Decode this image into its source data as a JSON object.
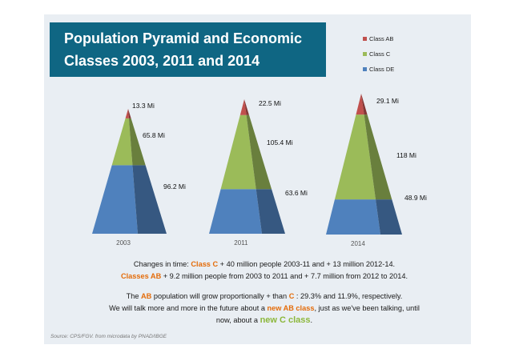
{
  "title": {
    "line1": "Population Pyramid and Economic",
    "line2": "Classes 2003, 2011 and 2014"
  },
  "legend": [
    {
      "name": "Class AB",
      "color": "#c0504d"
    },
    {
      "name": "Class C",
      "color": "#9bbb59"
    },
    {
      "name": "Class DE",
      "color": "#4f81bd"
    }
  ],
  "chart_data": {
    "type": "bar",
    "style": "stacked 3D pyramids",
    "categories": [
      "2003",
      "2011",
      "2014"
    ],
    "series": [
      {
        "name": "Class AB",
        "values": [
          13.3,
          22.5,
          29.1
        ],
        "labels": [
          "13.3 Mi",
          "22.5 Mi",
          "29.1 Mi"
        ],
        "color": "#c0504d"
      },
      {
        "name": "Class C",
        "values": [
          65.8,
          105.4,
          118
        ],
        "labels": [
          "65.8 Mi",
          "105.4 Mi",
          "118 Mi"
        ],
        "color": "#9bbb59"
      },
      {
        "name": "Class DE",
        "values": [
          96.2,
          63.6,
          48.9
        ],
        "labels": [
          "96.2 Mi",
          "63.6 Mi",
          "48.9 Mi"
        ],
        "color": "#4f81bd"
      }
    ],
    "legend_position": "top-right"
  },
  "notes": {
    "line1_a": "Changes in time: ",
    "line1_b": "Class C",
    "line1_c": " + 40 million people 2003-11  and  + 13 million 2012-14.",
    "line2_a": "Classes AB",
    "line2_b": " + 9.2 million people from 2003 to 2011 and  + 7.7 million from 2012 to 2014.",
    "line3_a": "The  ",
    "line3_b": "AB",
    "line3_c": " population will grow proportionally + than ",
    "line3_d": "C",
    "line3_e": " : 29.3% and 11.9%, respectively.",
    "line4_a": "We will talk more and more in the future about a ",
    "line4_b": "new AB class",
    "line4_c": ", just as we've been talking, until",
    "line5_a": "now, about a ",
    "line5_b": "new C class",
    "line5_c": "."
  },
  "source": "Source: CPS/FGV. from microdata by PNAD/IBGE"
}
